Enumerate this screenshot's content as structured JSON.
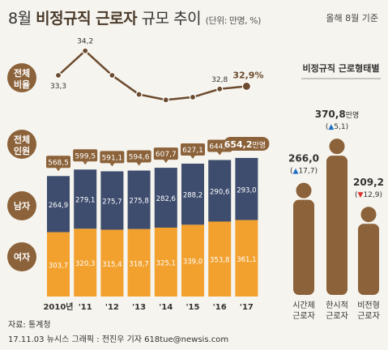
{
  "header": {
    "title_pre": "8월",
    "title_bold": "비정규직 근로자",
    "title_post": "규모 추이",
    "unit": "(단위: 만명, %)",
    "basis": "올해 8월 기준"
  },
  "colors": {
    "bg": "#f6f4ee",
    "male": "#3e4d6e",
    "female": "#f2a12e",
    "brown": "#8b6239",
    "line": "#6b4a2e",
    "up": "#1d6fc4",
    "down": "#d8322a"
  },
  "labels": {
    "ratio_tag_l1": "전체",
    "ratio_tag_l2": "비율",
    "total_tag_l1": "전체",
    "total_tag_l2": "인원",
    "male_tag": "남자",
    "female_tag": "여자",
    "total_unit": "만명"
  },
  "chart_data": {
    "type": "bar",
    "categories": [
      "2010년",
      "'11",
      "'12",
      "'13",
      "'14",
      "'15",
      "'16",
      "'17"
    ],
    "ratio": [
      33.3,
      34.2,
      33.3,
      32.6,
      32.4,
      32.5,
      32.8,
      32.9
    ],
    "ratio_labels": [
      "33,3",
      "34,2",
      "",
      "",
      "",
      "",
      "32,8",
      "32,9%"
    ],
    "totals": [
      "568,5",
      "599,5",
      "591,1",
      "594,6",
      "607,7",
      "627,1",
      "644,4",
      "654,2"
    ],
    "series": [
      {
        "name": "남자",
        "values": [
          264.9,
          279.1,
          275.7,
          275.8,
          282.6,
          288.2,
          290.6,
          293.0
        ],
        "labels": [
          "264,9",
          "279,1",
          "275,7",
          "275,8",
          "282,6",
          "288,2",
          "290,6",
          "293,0"
        ]
      },
      {
        "name": "여자",
        "values": [
          303.7,
          320.3,
          315.4,
          318.7,
          325.1,
          339.0,
          353.8,
          361.1
        ],
        "labels": [
          "303,7",
          "320,3",
          "315,4",
          "318,7",
          "325,1",
          "339,0",
          "353,8",
          "361,1"
        ]
      }
    ]
  },
  "side": {
    "title": "비정규직 근로형태별",
    "types": [
      {
        "value": "266,0",
        "unit": "",
        "change": "17,7",
        "dir": "up",
        "label_l1": "시간제",
        "label_l2": "근로자",
        "num": 266.0
      },
      {
        "value": "370,8",
        "unit": "만명",
        "change": "5,1",
        "dir": "up",
        "label_l1": "한시적",
        "label_l2": "근로자",
        "num": 370.8
      },
      {
        "value": "209,2",
        "unit": "",
        "change": "12,9",
        "dir": "down",
        "label_l1": "비전형",
        "label_l2": "근로자",
        "num": 209.2
      }
    ]
  },
  "footer": {
    "source": "자료: 통계청",
    "credit": "17.11.03   뉴시스 그래픽 : 전진우 기자 618tue@newsis.com"
  }
}
